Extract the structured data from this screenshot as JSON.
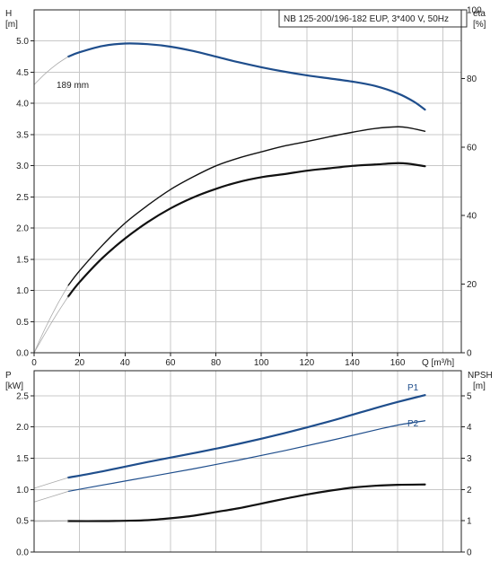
{
  "chart_data": [
    {
      "type": "line",
      "panel": "top",
      "title": "NB 125-200/196-182 EUP, 3*400 V, 50Hz",
      "grid": true,
      "xlabel": "Q [m³/h]",
      "xlim": [
        0,
        188
      ],
      "xticks": [
        "0",
        "20",
        "40",
        "60",
        "80",
        "100",
        "120",
        "140",
        "160"
      ],
      "y_left": {
        "label_line1": "H",
        "label_line2": "[m]",
        "ylim": [
          0,
          5.5
        ],
        "ticks": [
          "0.0",
          "0.5",
          "1.0",
          "1.5",
          "2.0",
          "2.5",
          "3.0",
          "3.5",
          "4.0",
          "4.5",
          "5.0"
        ]
      },
      "y_right": {
        "label_line1": "eta",
        "label_line2": "[%]",
        "ylim": [
          0,
          100
        ],
        "ticks": [
          "0",
          "20",
          "40",
          "60",
          "80",
          "100"
        ]
      },
      "annotation": "189 mm",
      "series": [
        {
          "key": "H",
          "axis": "left",
          "color": "#1f4e8c",
          "width": 2.2,
          "points": [
            [
              15,
              4.75
            ],
            [
              20,
              4.82
            ],
            [
              30,
              4.92
            ],
            [
              40,
              4.96
            ],
            [
              50,
              4.95
            ],
            [
              60,
              4.91
            ],
            [
              70,
              4.84
            ],
            [
              80,
              4.75
            ],
            [
              90,
              4.66
            ],
            [
              100,
              4.58
            ],
            [
              110,
              4.51
            ],
            [
              120,
              4.45
            ],
            [
              130,
              4.4
            ],
            [
              140,
              4.35
            ],
            [
              150,
              4.28
            ],
            [
              160,
              4.16
            ],
            [
              167,
              4.03
            ],
            [
              172,
              3.9
            ]
          ]
        },
        {
          "key": "H_ext",
          "axis": "left",
          "color": "#aaaaaa",
          "width": 0.8,
          "points": [
            [
              0,
              4.3
            ],
            [
              5,
              4.48
            ],
            [
              10,
              4.63
            ],
            [
              15,
              4.75
            ]
          ]
        },
        {
          "key": "eta_top",
          "axis": "right",
          "color": "#111111",
          "width": 1.4,
          "points": [
            [
              15,
              19.6
            ],
            [
              20,
              23.9
            ],
            [
              30,
              31.3
            ],
            [
              40,
              37.8
            ],
            [
              50,
              43.0
            ],
            [
              60,
              47.6
            ],
            [
              70,
              51.3
            ],
            [
              80,
              54.5
            ],
            [
              90,
              56.8
            ],
            [
              100,
              58.6
            ],
            [
              110,
              60.3
            ],
            [
              120,
              61.6
            ],
            [
              130,
              63.0
            ],
            [
              140,
              64.3
            ],
            [
              150,
              65.4
            ],
            [
              160,
              65.9
            ],
            [
              165,
              65.6
            ],
            [
              172,
              64.6
            ]
          ]
        },
        {
          "key": "eta_top_ext",
          "axis": "right",
          "color": "#aaaaaa",
          "width": 0.8,
          "points": [
            [
              0,
              0
            ],
            [
              5,
              7.3
            ],
            [
              10,
              13.8
            ],
            [
              15,
              19.6
            ]
          ]
        },
        {
          "key": "eta_bottom",
          "axis": "right",
          "color": "#111111",
          "width": 2.2,
          "points": [
            [
              15,
              16.4
            ],
            [
              20,
              20.6
            ],
            [
              30,
              27.6
            ],
            [
              40,
              33.3
            ],
            [
              50,
              38.1
            ],
            [
              60,
              42.1
            ],
            [
              70,
              45.3
            ],
            [
              80,
              47.8
            ],
            [
              90,
              49.8
            ],
            [
              100,
              51.2
            ],
            [
              110,
              52.1
            ],
            [
              120,
              53.1
            ],
            [
              130,
              53.8
            ],
            [
              140,
              54.5
            ],
            [
              150,
              54.9
            ],
            [
              160,
              55.3
            ],
            [
              165,
              55.1
            ],
            [
              172,
              54.4
            ]
          ]
        },
        {
          "key": "eta_bottom_ext",
          "axis": "right",
          "color": "#aaaaaa",
          "width": 0.8,
          "points": [
            [
              0,
              0
            ],
            [
              5,
              5.8
            ],
            [
              10,
              11.3
            ],
            [
              15,
              16.4
            ]
          ]
        }
      ]
    },
    {
      "type": "line",
      "panel": "bottom",
      "grid": true,
      "xlim": [
        0,
        188
      ],
      "y_left": {
        "label_line1": "P",
        "label_line2": "[kW]",
        "ylim": [
          0,
          2.9
        ],
        "ticks": [
          "0.0",
          "0.5",
          "1.0",
          "1.5",
          "2.0",
          "2.5"
        ]
      },
      "y_right": {
        "label_line1": "NPSH",
        "label_line2": "[m]",
        "ylim": [
          0,
          5.8
        ],
        "ticks": [
          "0",
          "1",
          "2",
          "3",
          "4",
          "5"
        ]
      },
      "series": [
        {
          "key": "P1",
          "name": "P1",
          "axis": "left",
          "color": "#1f4e8c",
          "width": 2.2,
          "points": [
            [
              15,
              1.19
            ],
            [
              30,
              1.29
            ],
            [
              50,
              1.44
            ],
            [
              70,
              1.58
            ],
            [
              90,
              1.73
            ],
            [
              110,
              1.9
            ],
            [
              130,
              2.09
            ],
            [
              150,
              2.3
            ],
            [
              160,
              2.4
            ],
            [
              172,
              2.51
            ]
          ]
        },
        {
          "key": "P1_ext",
          "axis": "left",
          "color": "#aaaaaa",
          "width": 0.8,
          "points": [
            [
              0,
              1.02
            ],
            [
              15,
              1.19
            ]
          ]
        },
        {
          "key": "P2",
          "name": "P2",
          "axis": "left",
          "color": "#1f4e8c",
          "width": 1.2,
          "points": [
            [
              15,
              0.97
            ],
            [
              30,
              1.07
            ],
            [
              50,
              1.2
            ],
            [
              70,
              1.33
            ],
            [
              90,
              1.47
            ],
            [
              110,
              1.62
            ],
            [
              130,
              1.78
            ],
            [
              150,
              1.95
            ],
            [
              160,
              2.03
            ],
            [
              172,
              2.1
            ]
          ]
        },
        {
          "key": "P2_ext",
          "axis": "left",
          "color": "#aaaaaa",
          "width": 0.8,
          "points": [
            [
              0,
              0.8
            ],
            [
              15,
              0.97
            ]
          ]
        },
        {
          "key": "NPSH",
          "axis": "right",
          "color": "#111111",
          "width": 2.2,
          "points": [
            [
              15,
              0.99
            ],
            [
              30,
              0.99
            ],
            [
              40,
              1.0
            ],
            [
              50,
              1.02
            ],
            [
              60,
              1.08
            ],
            [
              70,
              1.16
            ],
            [
              80,
              1.28
            ],
            [
              90,
              1.4
            ],
            [
              100,
              1.55
            ],
            [
              110,
              1.7
            ],
            [
              120,
              1.84
            ],
            [
              130,
              1.96
            ],
            [
              140,
              2.06
            ],
            [
              150,
              2.12
            ],
            [
              160,
              2.15
            ],
            [
              172,
              2.16
            ]
          ]
        },
        {
          "key": "NPSH_ext",
          "axis": "right",
          "color": "#aaaaaa",
          "width": 0.8,
          "points": [
            [
              0,
              0.98
            ],
            [
              15,
              0.99
            ]
          ]
        }
      ]
    }
  ]
}
